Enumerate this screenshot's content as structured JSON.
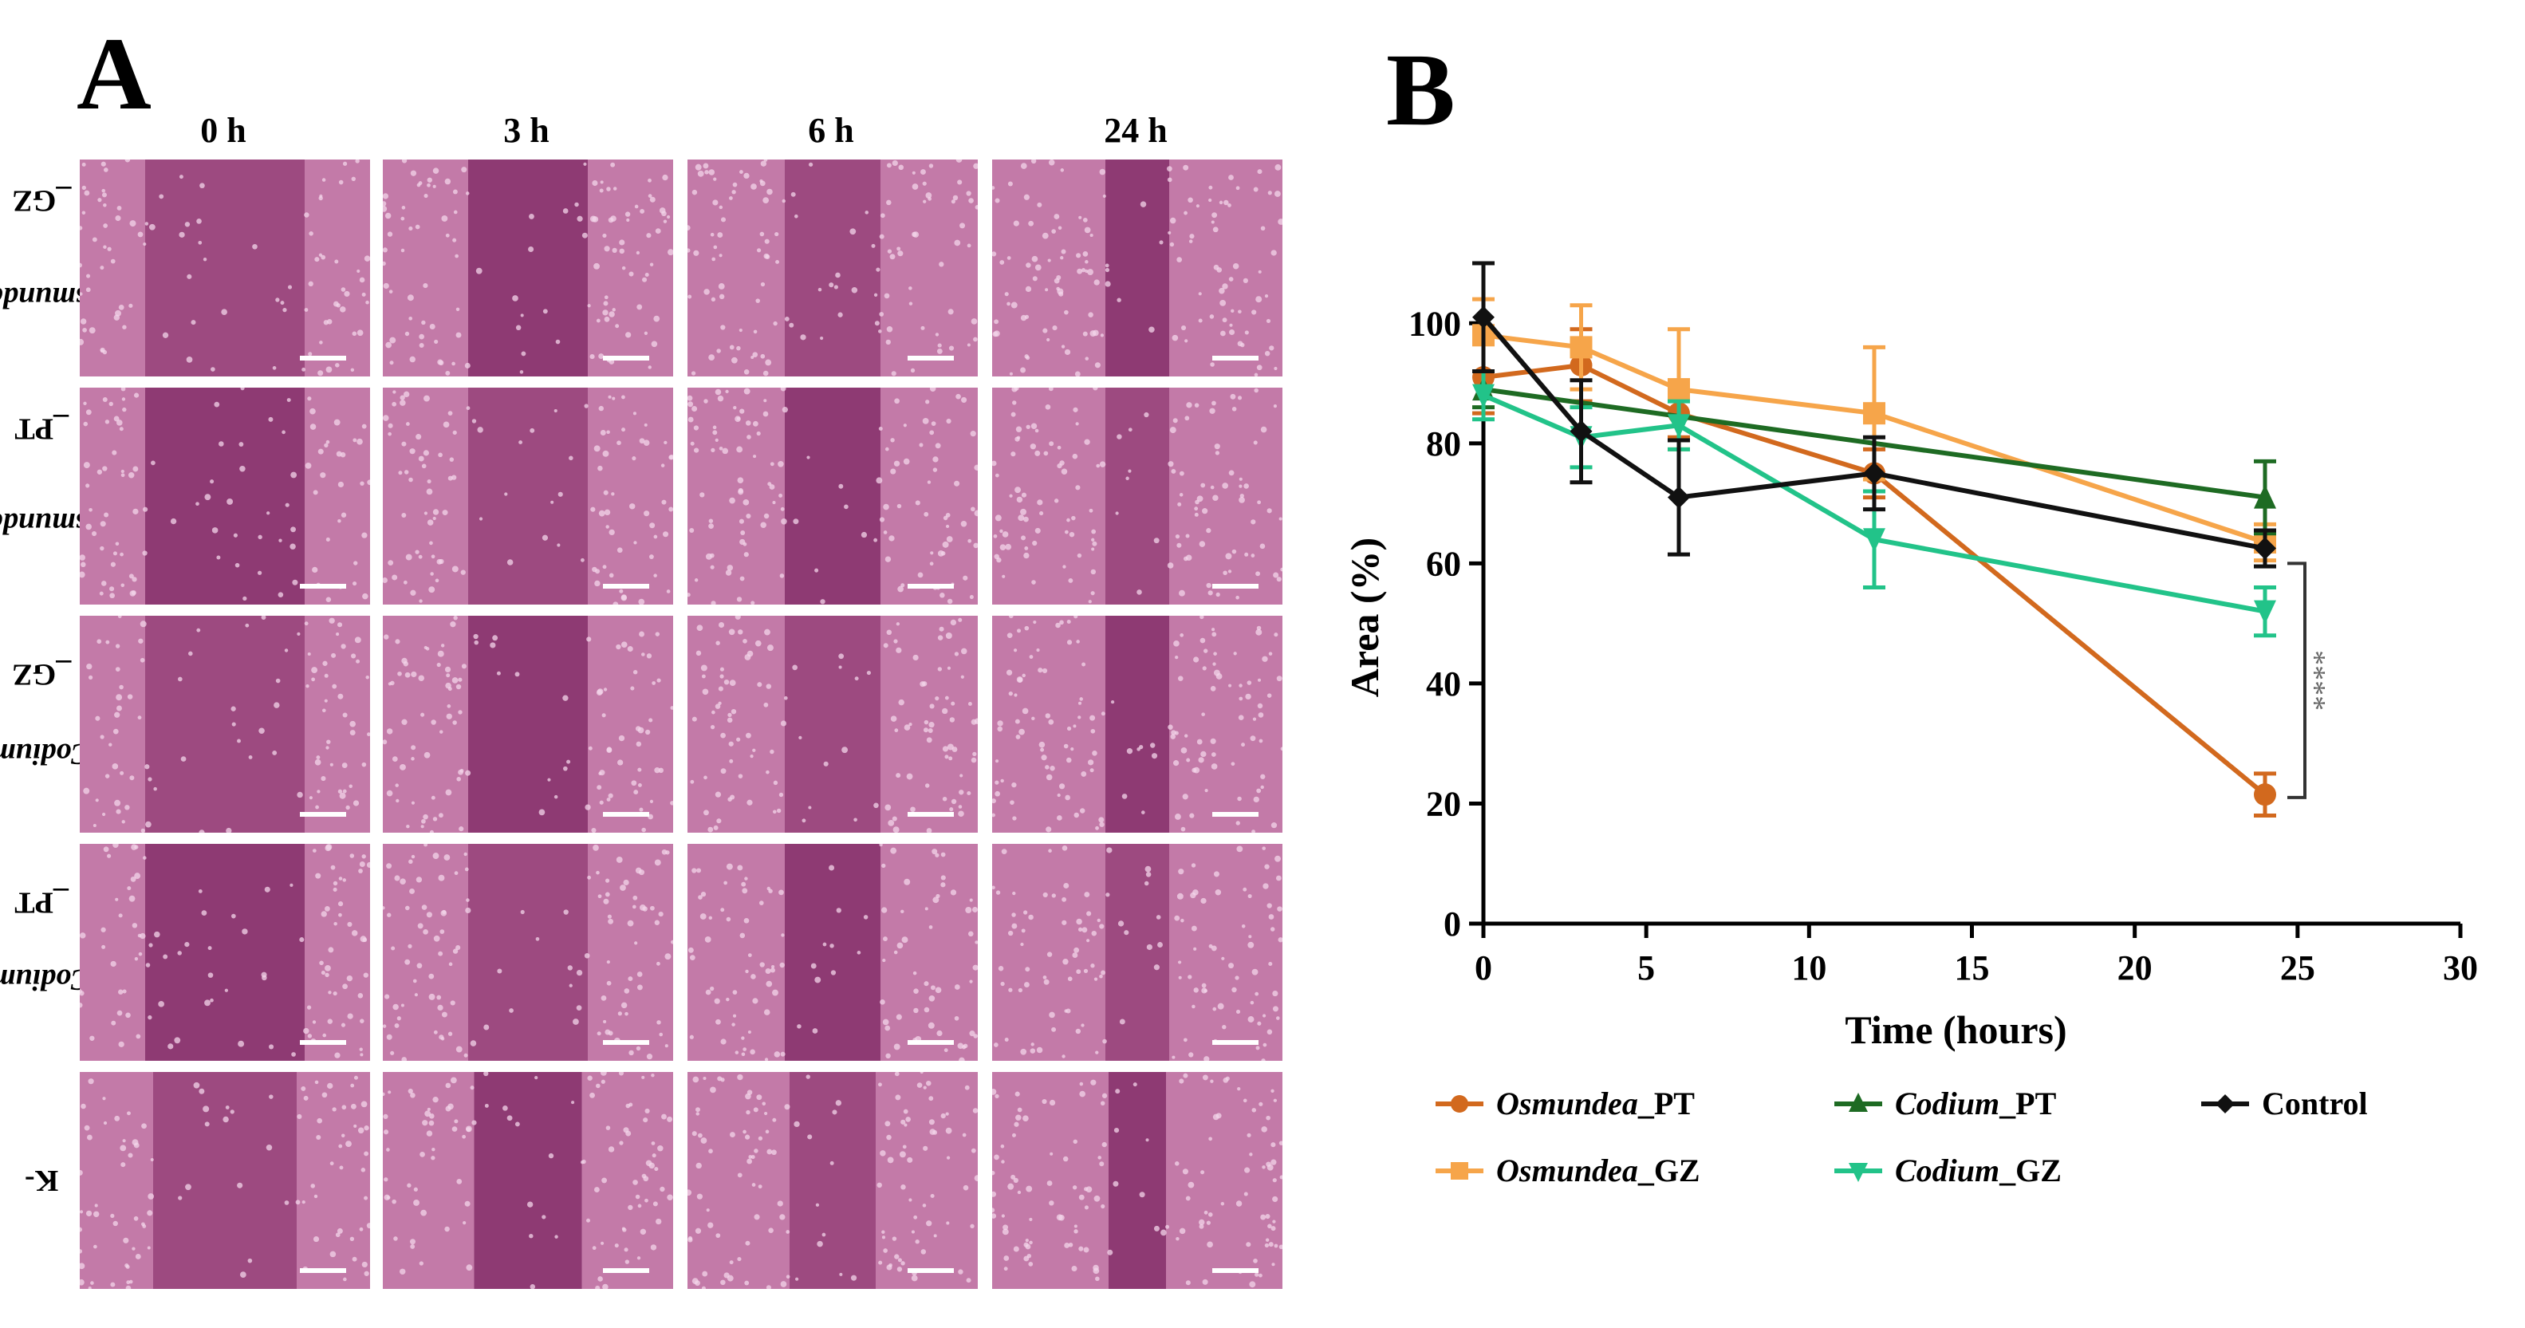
{
  "panel_a": {
    "label": "A",
    "columns": [
      "0 h",
      "3 h",
      "6 h",
      "24 h"
    ],
    "rows": [
      {
        "species": "Osmundea",
        "suffix": "_GZ"
      },
      {
        "species": "Osmundea",
        "suffix": "_PT"
      },
      {
        "species": "Codium",
        "suffix": "_GZ"
      },
      {
        "species": "Codium",
        "suffix": "_PT"
      },
      {
        "species": "",
        "suffix": "K-"
      }
    ]
  },
  "panel_b": {
    "label": "B"
  },
  "chart_data": {
    "type": "line",
    "xlabel": "Time (hours)",
    "ylabel": "Area (%)",
    "xlim": [
      0,
      30
    ],
    "ylim": [
      0,
      110
    ],
    "xticks": [
      0,
      5,
      10,
      15,
      20,
      25,
      30
    ],
    "yticks": [
      0,
      20,
      40,
      60,
      80,
      100
    ],
    "significance": "****",
    "series": [
      {
        "name": "Osmundea",
        "suffix": "_PT",
        "color": "#d2691e",
        "marker": "circle",
        "x": [
          0,
          3,
          6,
          12,
          24
        ],
        "y": [
          91,
          93,
          85,
          75,
          21.5
        ],
        "err": [
          6,
          6,
          4,
          4,
          3.5
        ]
      },
      {
        "name": "Osmundea",
        "suffix": "_GZ",
        "color": "#f6a54a",
        "marker": "square",
        "x": [
          0,
          3,
          6,
          12,
          24
        ],
        "y": [
          98,
          96,
          89,
          85,
          63.5
        ],
        "err": [
          6,
          7,
          10,
          11,
          3
        ]
      },
      {
        "name": "Codium",
        "suffix": "_PT",
        "color": "#1e6b23",
        "marker": "triangle",
        "x": [
          0,
          24
        ],
        "y": [
          89,
          71
        ],
        "err": [
          3,
          6
        ]
      },
      {
        "name": "Codium",
        "suffix": "_GZ",
        "color": "#22c389",
        "marker": "triangle-down",
        "x": [
          0,
          3,
          6,
          12,
          24
        ],
        "y": [
          88,
          81,
          83,
          64,
          52
        ],
        "err": [
          4,
          5,
          4,
          8,
          4
        ]
      },
      {
        "name": "Control",
        "suffix": "",
        "color": "#111111",
        "marker": "diamond",
        "x": [
          0,
          3,
          6,
          12,
          24
        ],
        "y": [
          101,
          82,
          71,
          75,
          62.5
        ],
        "err": [
          9,
          8.5,
          9.5,
          6,
          3
        ]
      }
    ]
  }
}
